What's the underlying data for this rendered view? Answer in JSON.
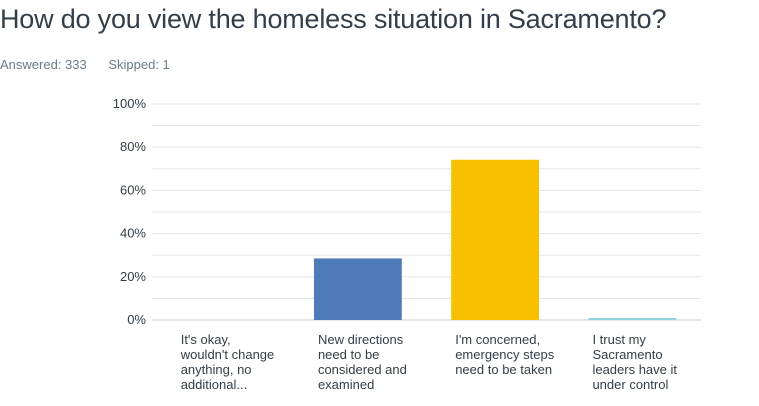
{
  "question": {
    "title": "How do you view the homeless situation in Sacramento?",
    "answered": "Answered: 333",
    "skipped": "Skipped: 1"
  },
  "colors": {
    "series": [
      "#5a79b8",
      "#4f7ab8",
      "#f7c000",
      "#8ed1e0"
    ],
    "grid": "#e3e6e8",
    "axis": "#c9ced2"
  },
  "chart_data": {
    "type": "bar",
    "categories": [
      [
        "It's okay,",
        "wouldn't change",
        "anything, no",
        "additional..."
      ],
      [
        "New directions",
        "need to be",
        "considered and",
        "examined"
      ],
      [
        "I'm concerned,",
        "emergency steps",
        "need to be taken"
      ],
      [
        "I trust my",
        "Sacramento",
        "leaders have it",
        "under control"
      ]
    ],
    "values": [
      0,
      28.5,
      74.2,
      0.9
    ],
    "ylim": [
      0,
      100
    ],
    "yticks": [
      0,
      20,
      40,
      60,
      80,
      100
    ],
    "ytick_labels": [
      "0%",
      "20%",
      "40%",
      "60%",
      "80%",
      "100%"
    ],
    "grid": true,
    "xlabel": "",
    "ylabel": ""
  }
}
